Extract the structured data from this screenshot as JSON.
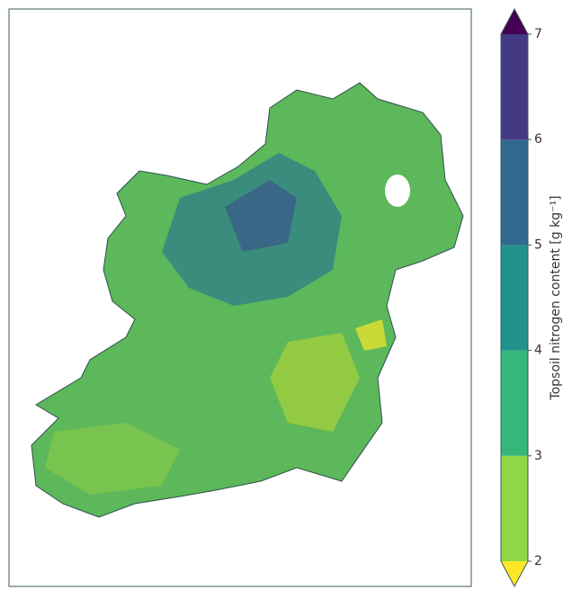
{
  "colorbar": {
    "label": "Topsoil nitrogen content [g kg⁻¹]",
    "ticks": [
      2,
      3,
      4,
      5,
      6,
      7
    ],
    "colors": [
      "#8fd744",
      "#35b779",
      "#21918c",
      "#31688e",
      "#443983"
    ],
    "under_color": "#fde725",
    "over_color": "#440154"
  }
}
